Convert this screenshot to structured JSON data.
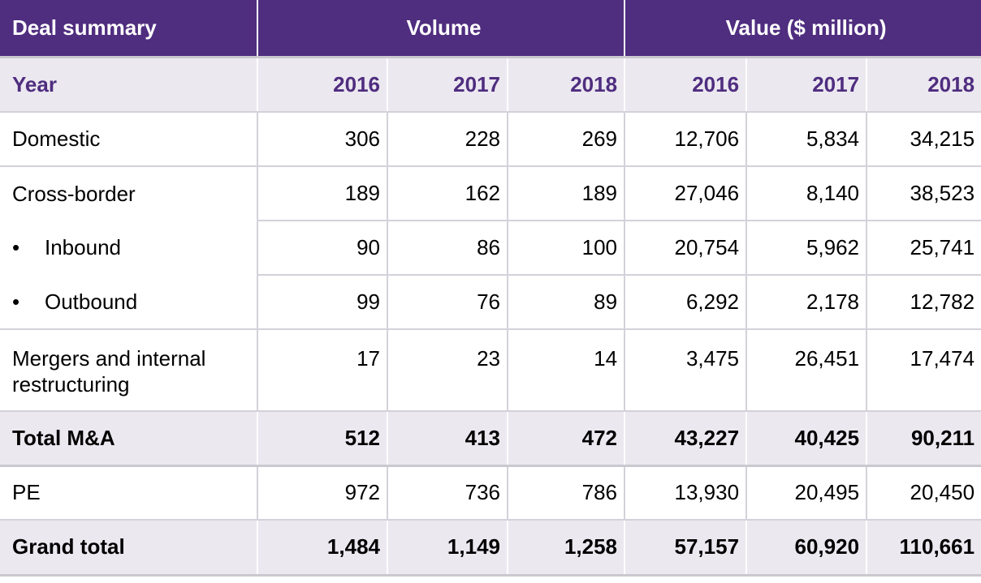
{
  "header": {
    "deal_summary": "Deal summary",
    "volume": "Volume",
    "value": "Value ($ million)"
  },
  "years": {
    "label": "Year",
    "cols": [
      "2016",
      "2017",
      "2018",
      "2016",
      "2017",
      "2018"
    ]
  },
  "rows": [
    {
      "label": "Domestic",
      "values": [
        "306",
        "228",
        "269",
        "12,706",
        "5,834",
        "34,215"
      ]
    },
    {
      "label": "Cross-border",
      "values": [
        "189",
        "162",
        "189",
        "27,046",
        "8,140",
        "38,523"
      ]
    },
    {
      "bullet": "•",
      "label": "Inbound",
      "values": [
        "90",
        "86",
        "100",
        "20,754",
        "5,962",
        "25,741"
      ]
    },
    {
      "bullet": "•",
      "label": "Outbound",
      "values": [
        "99",
        "76",
        "89",
        "6,292",
        "2,178",
        "12,782"
      ]
    },
    {
      "label": "Mergers and internal restructuring",
      "values": [
        "17",
        "23",
        "14",
        "3,475",
        "26,451",
        "17,474"
      ]
    },
    {
      "label": "Total M&A",
      "values": [
        "512",
        "413",
        "472",
        "43,227",
        "40,425",
        "90,211"
      ]
    },
    {
      "label": "PE",
      "values": [
        "972",
        "736",
        "786",
        "13,930",
        "20,495",
        "20,450"
      ]
    },
    {
      "label": "Grand total",
      "values": [
        "1,484",
        "1,149",
        "1,258",
        "57,157",
        "60,920",
        "110,661"
      ]
    }
  ]
}
